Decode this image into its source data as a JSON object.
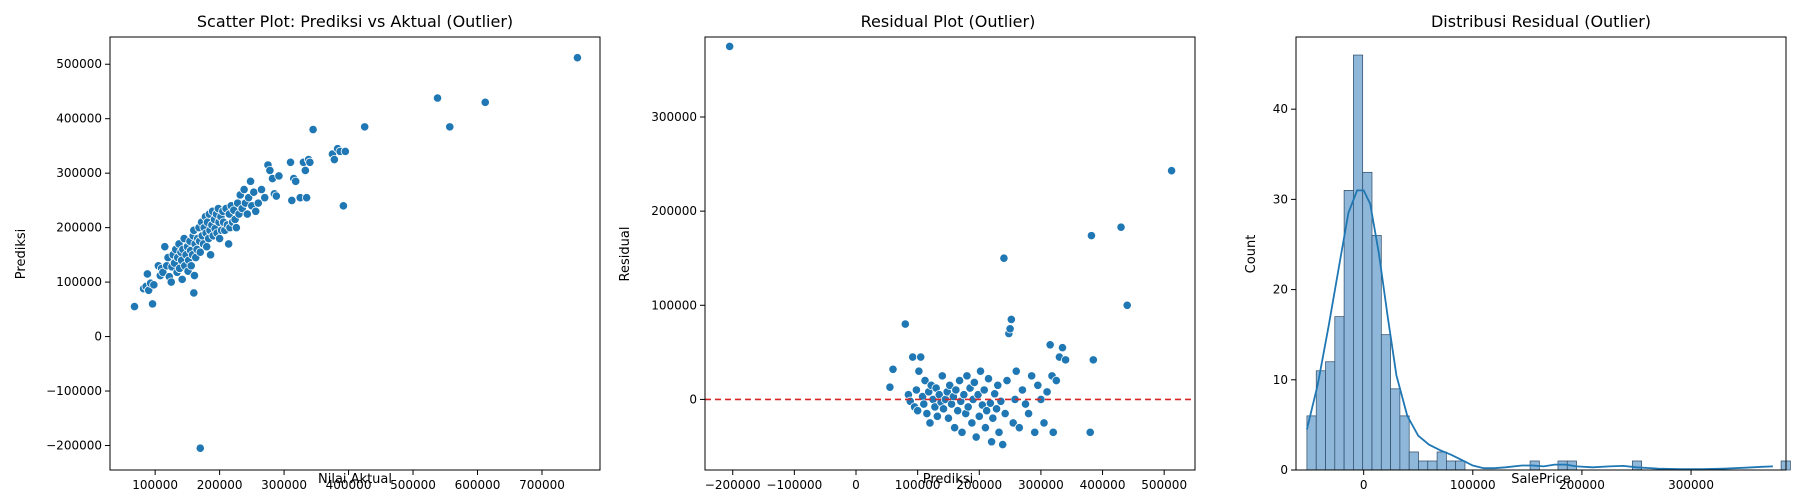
{
  "chart_data": [
    {
      "type": "scatter",
      "title": "Scatter Plot: Prediksi vs Aktual (Outlier)",
      "xlabel": "Nilai Aktual",
      "ylabel": "Prediksi",
      "xlim": [
        30000,
        790000
      ],
      "ylim": [
        -245000,
        550000
      ],
      "xticks": [
        100000,
        200000,
        300000,
        400000,
        500000,
        600000,
        700000
      ],
      "yticks": [
        -200000,
        -100000,
        0,
        100000,
        200000,
        300000,
        400000,
        500000
      ],
      "xtick_labels": [
        "100000",
        "200000",
        "300000",
        "400000",
        "500000",
        "600000",
        "700000"
      ],
      "ytick_labels": [
        "−200000",
        "−100000",
        "0",
        "100000",
        "200000",
        "300000",
        "400000",
        "500000"
      ],
      "grid": false,
      "color": "#1f77b4",
      "points": [
        [
          68000,
          55000
        ],
        [
          82000,
          88000
        ],
        [
          86000,
          92000
        ],
        [
          88000,
          115000
        ],
        [
          90000,
          85000
        ],
        [
          93000,
          98000
        ],
        [
          96000,
          60000
        ],
        [
          98000,
          95000
        ],
        [
          105000,
          130000
        ],
        [
          108000,
          112000
        ],
        [
          110000,
          125000
        ],
        [
          112000,
          118000
        ],
        [
          115000,
          165000
        ],
        [
          118000,
          130000
        ],
        [
          120000,
          145000
        ],
        [
          122000,
          110000
        ],
        [
          125000,
          100000
        ],
        [
          126000,
          128000
        ],
        [
          128000,
          150000
        ],
        [
          130000,
          135000
        ],
        [
          132000,
          160000
        ],
        [
          134000,
          118000
        ],
        [
          135000,
          145000
        ],
        [
          137000,
          170000
        ],
        [
          138000,
          125000
        ],
        [
          140000,
          155000
        ],
        [
          141000,
          140000
        ],
        [
          142000,
          105000
        ],
        [
          143000,
          160000
        ],
        [
          145000,
          180000
        ],
        [
          146000,
          130000
        ],
        [
          148000,
          150000
        ],
        [
          150000,
          165000
        ],
        [
          151000,
          120000
        ],
        [
          152000,
          140000
        ],
        [
          154000,
          175000
        ],
        [
          155000,
          158000
        ],
        [
          156000,
          130000
        ],
        [
          158000,
          150000
        ],
        [
          159000,
          185000
        ],
        [
          160000,
          80000
        ],
        [
          160000,
          195000
        ],
        [
          161000,
          112000
        ],
        [
          162000,
          170000
        ],
        [
          163000,
          145000
        ],
        [
          165000,
          160000
        ],
        [
          166000,
          180000
        ],
        [
          168000,
          200000
        ],
        [
          169000,
          175000
        ],
        [
          170000,
          -205000
        ],
        [
          170000,
          155000
        ],
        [
          172000,
          210000
        ],
        [
          173000,
          185000
        ],
        [
          175000,
          170000
        ],
        [
          176000,
          200000
        ],
        [
          178000,
          220000
        ],
        [
          179000,
          190000
        ],
        [
          180000,
          165000
        ],
        [
          181000,
          210000
        ],
        [
          183000,
          180000
        ],
        [
          184000,
          225000
        ],
        [
          185000,
          195000
        ],
        [
          186000,
          150000
        ],
        [
          188000,
          205000
        ],
        [
          189000,
          230000
        ],
        [
          190000,
          185000
        ],
        [
          192000,
          215000
        ],
        [
          193000,
          198000
        ],
        [
          195000,
          225000
        ],
        [
          196000,
          190000
        ],
        [
          198000,
          235000
        ],
        [
          199000,
          210000
        ],
        [
          200000,
          180000
        ],
        [
          202000,
          220000
        ],
        [
          203000,
          195000
        ],
        [
          205000,
          230000
        ],
        [
          206000,
          210000
        ],
        [
          208000,
          195000
        ],
        [
          210000,
          235000
        ],
        [
          212000,
          205000
        ],
        [
          214000,
          170000
        ],
        [
          215000,
          225000
        ],
        [
          216000,
          200000
        ],
        [
          218000,
          240000
        ],
        [
          220000,
          210000
        ],
        [
          222000,
          232000
        ],
        [
          224000,
          215000
        ],
        [
          226000,
          200000
        ],
        [
          228000,
          245000
        ],
        [
          230000,
          225000
        ],
        [
          232000,
          260000
        ],
        [
          235000,
          235000
        ],
        [
          238000,
          270000
        ],
        [
          240000,
          245000
        ],
        [
          243000,
          225000
        ],
        [
          245000,
          255000
        ],
        [
          248000,
          285000
        ],
        [
          250000,
          240000
        ],
        [
          253000,
          265000
        ],
        [
          256000,
          230000
        ],
        [
          260000,
          245000
        ],
        [
          265000,
          270000
        ],
        [
          270000,
          255000
        ],
        [
          275000,
          315000
        ],
        [
          278000,
          305000
        ],
        [
          282000,
          290000
        ],
        [
          285000,
          262000
        ],
        [
          288000,
          258000
        ],
        [
          292000,
          295000
        ],
        [
          310000,
          320000
        ],
        [
          312000,
          250000
        ],
        [
          315000,
          290000
        ],
        [
          318000,
          285000
        ],
        [
          325000,
          255000
        ],
        [
          330000,
          320000
        ],
        [
          333000,
          305000
        ],
        [
          335000,
          255000
        ],
        [
          338000,
          325000
        ],
        [
          340000,
          320000
        ],
        [
          345000,
          380000
        ],
        [
          375000,
          335000
        ],
        [
          378000,
          325000
        ],
        [
          383000,
          345000
        ],
        [
          387000,
          340000
        ],
        [
          392000,
          240000
        ],
        [
          395000,
          340000
        ],
        [
          425000,
          385000
        ],
        [
          538000,
          438000
        ],
        [
          557000,
          385000
        ],
        [
          612000,
          430000
        ],
        [
          755000,
          512000
        ]
      ]
    },
    {
      "type": "scatter",
      "title": "Residual Plot (Outlier)",
      "xlabel": "Prediksi",
      "ylabel": "Residual",
      "xlim": [
        -245000,
        550000
      ],
      "ylim": [
        -75000,
        385000
      ],
      "xticks": [
        -200000,
        -100000,
        0,
        100000,
        200000,
        300000,
        400000,
        500000
      ],
      "yticks": [
        0,
        100000,
        200000,
        300000
      ],
      "xtick_labels": [
        "−200000",
        "−100000",
        "0",
        "100000",
        "200000",
        "300000",
        "400000",
        "500000"
      ],
      "ytick_labels": [
        "0",
        "100000",
        "200000",
        "300000"
      ],
      "grid": false,
      "color": "#1f77b4",
      "reference_line": {
        "y": 0,
        "color": "#d62728",
        "style": "dashed"
      },
      "points": [
        [
          -205000,
          375000
        ],
        [
          55000,
          13000
        ],
        [
          60000,
          32000
        ],
        [
          80000,
          80000
        ],
        [
          85000,
          5000
        ],
        [
          88000,
          -2000
        ],
        [
          92000,
          45000
        ],
        [
          95000,
          -8000
        ],
        [
          98000,
          10000
        ],
        [
          100000,
          -12000
        ],
        [
          102000,
          30000
        ],
        [
          105000,
          45000
        ],
        [
          108000,
          3000
        ],
        [
          110000,
          -5000
        ],
        [
          112000,
          20000
        ],
        [
          115000,
          -15000
        ],
        [
          118000,
          8000
        ],
        [
          120000,
          -25000
        ],
        [
          122000,
          15000
        ],
        [
          125000,
          0
        ],
        [
          128000,
          -8000
        ],
        [
          130000,
          12000
        ],
        [
          132000,
          -18000
        ],
        [
          135000,
          5000
        ],
        [
          138000,
          -3000
        ],
        [
          140000,
          25000
        ],
        [
          142000,
          -10000
        ],
        [
          145000,
          0
        ],
        [
          148000,
          8000
        ],
        [
          150000,
          -20000
        ],
        [
          152000,
          15000
        ],
        [
          155000,
          -5000
        ],
        [
          158000,
          3000
        ],
        [
          160000,
          -30000
        ],
        [
          162000,
          10000
        ],
        [
          165000,
          -12000
        ],
        [
          168000,
          20000
        ],
        [
          170000,
          -2000
        ],
        [
          172000,
          -35000
        ],
        [
          175000,
          5000
        ],
        [
          178000,
          -15000
        ],
        [
          180000,
          25000
        ],
        [
          182000,
          -8000
        ],
        [
          185000,
          12000
        ],
        [
          188000,
          -25000
        ],
        [
          190000,
          0
        ],
        [
          192000,
          18000
        ],
        [
          195000,
          -40000
        ],
        [
          198000,
          5000
        ],
        [
          200000,
          -18000
        ],
        [
          202000,
          30000
        ],
        [
          205000,
          -6000
        ],
        [
          208000,
          10000
        ],
        [
          210000,
          -30000
        ],
        [
          212000,
          -12000
        ],
        [
          215000,
          22000
        ],
        [
          218000,
          -4000
        ],
        [
          220000,
          -45000
        ],
        [
          222000,
          -20000
        ],
        [
          225000,
          6000
        ],
        [
          228000,
          -10000
        ],
        [
          230000,
          15000
        ],
        [
          232000,
          -35000
        ],
        [
          235000,
          -2000
        ],
        [
          238000,
          -48000
        ],
        [
          240000,
          150000
        ],
        [
          242000,
          -15000
        ],
        [
          245000,
          20000
        ],
        [
          248000,
          70000
        ],
        [
          250000,
          75000
        ],
        [
          252000,
          85000
        ],
        [
          255000,
          -25000
        ],
        [
          258000,
          0
        ],
        [
          260000,
          30000
        ],
        [
          265000,
          -30000
        ],
        [
          270000,
          10000
        ],
        [
          275000,
          -5000
        ],
        [
          280000,
          -15000
        ],
        [
          285000,
          25000
        ],
        [
          290000,
          -35000
        ],
        [
          295000,
          15000
        ],
        [
          300000,
          0
        ],
        [
          305000,
          -25000
        ],
        [
          310000,
          8000
        ],
        [
          315000,
          58000
        ],
        [
          318000,
          25000
        ],
        [
          320000,
          -35000
        ],
        [
          325000,
          20000
        ],
        [
          330000,
          45000
        ],
        [
          335000,
          55000
        ],
        [
          340000,
          42000
        ],
        [
          380000,
          -35000
        ],
        [
          382000,
          174000
        ],
        [
          385000,
          42000
        ],
        [
          430000,
          183000
        ],
        [
          440000,
          100000
        ],
        [
          512000,
          243000
        ]
      ]
    },
    {
      "type": "bar",
      "title": "Distribusi Residual (Outlier)",
      "xlabel": "SalePrice",
      "ylabel": "Count",
      "xlim": [
        -62000,
        387000
      ],
      "ylim": [
        0,
        48
      ],
      "xticks": [
        0,
        100000,
        200000,
        300000
      ],
      "yticks": [
        0,
        10,
        20,
        30,
        40
      ],
      "xtick_labels": [
        "0",
        "100000",
        "200000",
        "300000"
      ],
      "ytick_labels": [
        "0",
        "10",
        "20",
        "30",
        "40"
      ],
      "grid": false,
      "color": "#1f77b4",
      "bin_start": -52000,
      "bin_width": 8520,
      "counts": [
        6,
        11,
        12,
        17,
        31,
        46,
        33,
        26,
        15,
        9,
        6,
        2,
        1,
        1,
        2,
        1,
        1,
        0,
        0,
        0,
        0,
        0,
        0,
        0,
        1,
        0,
        0,
        1,
        1,
        0,
        0,
        0,
        0,
        0,
        0,
        1,
        0,
        0,
        0,
        0,
        0,
        0,
        0,
        0,
        0,
        0,
        0,
        0,
        0,
        0,
        0,
        1
      ],
      "kde_line": [
        [
          -52000,
          4.5
        ],
        [
          -42000,
          9.5
        ],
        [
          -32000,
          16
        ],
        [
          -22000,
          23
        ],
        [
          -14000,
          28.5
        ],
        [
          -6000,
          31
        ],
        [
          0,
          31
        ],
        [
          6000,
          29.5
        ],
        [
          14000,
          24
        ],
        [
          22000,
          17
        ],
        [
          30000,
          10.5
        ],
        [
          40000,
          6
        ],
        [
          50000,
          3.8
        ],
        [
          60000,
          2.8
        ],
        [
          70000,
          2.2
        ],
        [
          80000,
          1.7
        ],
        [
          90000,
          1.1
        ],
        [
          100000,
          0.5
        ],
        [
          110000,
          0.2
        ],
        [
          120000,
          0.2
        ],
        [
          130000,
          0.3
        ],
        [
          145000,
          0.5
        ],
        [
          155000,
          0.5
        ],
        [
          165000,
          0.4
        ],
        [
          175000,
          0.6
        ],
        [
          185000,
          0.6
        ],
        [
          195000,
          0.4
        ],
        [
          210000,
          0.3
        ],
        [
          225000,
          0.4
        ],
        [
          238000,
          0.45
        ],
        [
          250000,
          0.3
        ],
        [
          270000,
          0.15
        ],
        [
          290000,
          0.1
        ],
        [
          310000,
          0.1
        ],
        [
          330000,
          0.15
        ],
        [
          350000,
          0.25
        ],
        [
          365000,
          0.35
        ],
        [
          375000,
          0.4
        ]
      ]
    }
  ]
}
